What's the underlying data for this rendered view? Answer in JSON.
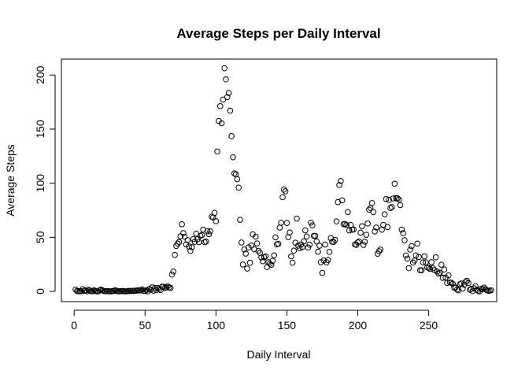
{
  "chart_data": {
    "type": "scatter",
    "title": "Average Steps per Daily Interval",
    "xlabel": "Daily Interval",
    "ylabel": "Average Steps",
    "xlim": [
      1,
      288
    ],
    "ylim": [
      0,
      206
    ],
    "x_ticks": [
      0,
      50,
      100,
      150,
      200,
      250
    ],
    "y_ticks": [
      0,
      50,
      100,
      150,
      200
    ],
    "grid": false,
    "legend": "none",
    "marker": "open-circle",
    "y": [
      1.7,
      0.3,
      0.1,
      0.2,
      0.1,
      2.1,
      0.5,
      0.9,
      0,
      1.5,
      0.8,
      0.1,
      0.1,
      1.1,
      0.3,
      0,
      0,
      1.1,
      1.6,
      0.9,
      0.2,
      0.2,
      0.2,
      0.2,
      0,
      0,
      0.3,
      0.3,
      1.2,
      0.4,
      0,
      0.1,
      0.2,
      0.3,
      0.3,
      0,
      0,
      0.4,
      0.3,
      0.4,
      0.5,
      0.3,
      0.7,
      0.7,
      1.1,
      0.8,
      1,
      1.8,
      0.5,
      0.3,
      1.1,
      0,
      2.2,
      1.6,
      3.7,
      0.7,
      3.2,
      1.1,
      3.1,
      2.1,
      1.2,
      4.3,
      4.3,
      3.2,
      3.6,
      4.7,
      3.6,
      3.2,
      15.5,
      18.3,
      33.7,
      42,
      44.2,
      45.6,
      50.9,
      62,
      53.8,
      50.5,
      43.4,
      47.4,
      41.5,
      37.4,
      40.8,
      48.4,
      45.8,
      53.4,
      48.2,
      45.5,
      51.3,
      52.1,
      57.1,
      45.5,
      46,
      55.6,
      52.9,
      55.5,
      69,
      68.3,
      72.6,
      64.9,
      129.3,
      157.5,
      171.2,
      155.4,
      177.3,
      206.2,
      196,
      179.6,
      183.4,
      167,
      143.5,
      124,
      109.1,
      108.1,
      103.7,
      95.9,
      66.2,
      45.2,
      24.8,
      38.8,
      34.9,
      21.1,
      40.6,
      26.5,
      42.4,
      52.7,
      38.9,
      50.5,
      44.3,
      37.4,
      35.5,
      31.3,
      27.9,
      31.5,
      32.4,
      22.5,
      26.9,
      25.5,
      24.5,
      28.2,
      33.3,
      49.9,
      43.5,
      44,
      58.9,
      63.5,
      87,
      94.1,
      92.5,
      63.2,
      50.2,
      54.5,
      32.4,
      26.5,
      37.7,
      45,
      67.3,
      42.3,
      39.9,
      43.3,
      40.9,
      46.3,
      56.4,
      50.7,
      40.5,
      43.2,
      63.5,
      61,
      51.3,
      51.3,
      46.2,
      36.7,
      42.2,
      27,
      17.1,
      28.5,
      43.3,
      26.9,
      28.9,
      36.5,
      49.2,
      45.9,
      45.7,
      47.6,
      64.7,
      82.5,
      98.3,
      102,
      84.1,
      62.1,
      62.2,
      61.5,
      73.3,
      56.3,
      61.3,
      57,
      57.2,
      43.4,
      43,
      45.3,
      46.2,
      54.3,
      60.2,
      42.9,
      45.9,
      52.3,
      62.7,
      75.5,
      77,
      81.7,
      73.3,
      55.4,
      59,
      34.8,
      37.2,
      38.7,
      57,
      61.5,
      71.2,
      85.3,
      59.5,
      84.6,
      77,
      77.9,
      85.9,
      99.5,
      86.1,
      86,
      84.9,
      79.7,
      57.1,
      53.8,
      47.3,
      33.2,
      30.3,
      21.4,
      38.6,
      41.8,
      26.6,
      28.5,
      33.3,
      44.2,
      31.8,
      19.5,
      19.5,
      26.8,
      32.4,
      26.8,
      22.2,
      21.8,
      20.7,
      27,
      21.4,
      19.7,
      31.5,
      18.3,
      16.4,
      17.2,
      24.6,
      12.5,
      20.2,
      12.8,
      7.8,
      14.8,
      8.3,
      8,
      7.1,
      3.5,
      3.6,
      1.7,
      1,
      6.7,
      7.3,
      2.6,
      6.1,
      8.8,
      9.8,
      7.8,
      1.5,
      2.3,
      0.2,
      2.9,
      4.8,
      1.4,
      0.4,
      0,
      2.3,
      2,
      3.5,
      2.1,
      1.1,
      0.6,
      0.7,
      1
    ]
  }
}
